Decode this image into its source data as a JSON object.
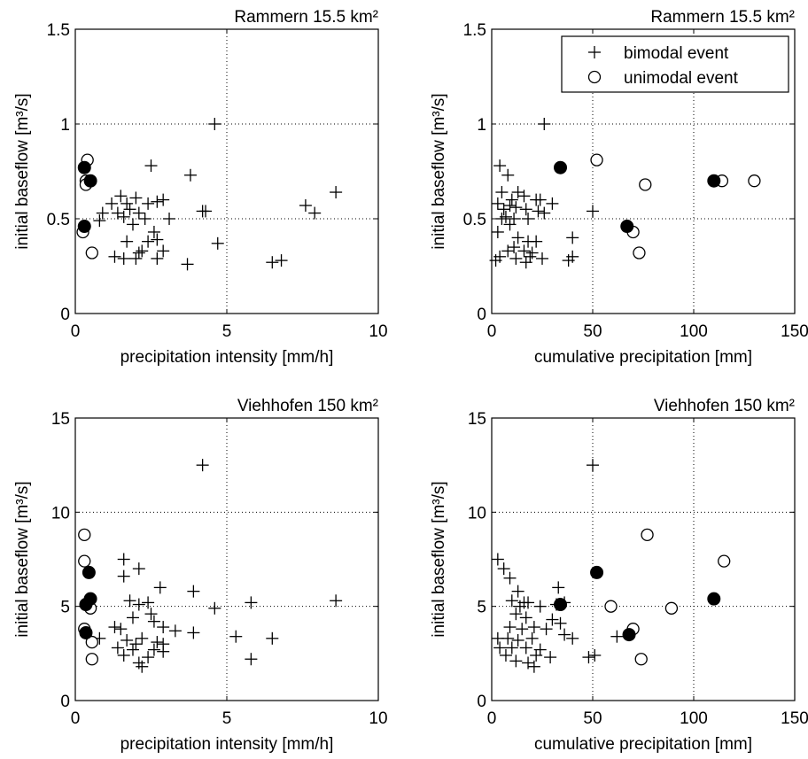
{
  "chart_data": [
    {
      "type": "scatter",
      "title": "Rammern 15.5 km²",
      "xlabel": "precipitation intensity [mm/h]",
      "ylabel": "initial baseflow [m³/s]",
      "xlim": [
        0,
        10
      ],
      "ylim": [
        0,
        1.5
      ],
      "xticks": [
        0,
        5,
        10
      ],
      "yticks": [
        0,
        0.5,
        1,
        1.5
      ],
      "xtick_labels": [
        "0",
        "5",
        "10"
      ],
      "ytick_labels": [
        "0",
        "0.5",
        "1",
        "1.5"
      ],
      "grid": "dotted at 5 and 0.5, 1",
      "legend": null,
      "series": [
        {
          "name": "bimodal event",
          "marker": "plus",
          "points": [
            [
              4.6,
              1.0
            ],
            [
              2.5,
              0.78
            ],
            [
              3.8,
              0.73
            ],
            [
              8.6,
              0.64
            ],
            [
              1.5,
              0.62
            ],
            [
              2.0,
              0.61
            ],
            [
              1.2,
              0.58
            ],
            [
              1.7,
              0.58
            ],
            [
              2.4,
              0.58
            ],
            [
              2.7,
              0.59
            ],
            [
              2.9,
              0.6
            ],
            [
              7.6,
              0.57
            ],
            [
              0.9,
              0.53
            ],
            [
              1.4,
              0.53
            ],
            [
              1.8,
              0.55
            ],
            [
              2.1,
              0.53
            ],
            [
              4.2,
              0.54
            ],
            [
              4.3,
              0.54
            ],
            [
              7.9,
              0.53
            ],
            [
              0.8,
              0.49
            ],
            [
              1.6,
              0.51
            ],
            [
              2.3,
              0.5
            ],
            [
              3.1,
              0.5
            ],
            [
              1.9,
              0.47
            ],
            [
              2.6,
              0.43
            ],
            [
              1.7,
              0.38
            ],
            [
              2.4,
              0.38
            ],
            [
              2.7,
              0.39
            ],
            [
              4.7,
              0.37
            ],
            [
              2.2,
              0.33
            ],
            [
              2.1,
              0.32
            ],
            [
              2.9,
              0.33
            ],
            [
              1.3,
              0.3
            ],
            [
              1.6,
              0.29
            ],
            [
              2.0,
              0.29
            ],
            [
              2.7,
              0.29
            ],
            [
              3.7,
              0.26
            ],
            [
              6.5,
              0.27
            ],
            [
              6.8,
              0.28
            ]
          ]
        },
        {
          "name": "unimodal event",
          "marker": "circle-open",
          "points": [
            [
              0.4,
              0.81
            ],
            [
              0.35,
              0.7
            ],
            [
              0.35,
              0.68
            ],
            [
              0.5,
              0.7
            ],
            [
              0.25,
              0.43
            ],
            [
              0.55,
              0.32
            ]
          ]
        },
        {
          "name": "",
          "marker": "circle-filled",
          "points": [
            [
              0.3,
              0.77
            ],
            [
              0.5,
              0.7
            ],
            [
              0.3,
              0.46
            ]
          ]
        }
      ]
    },
    {
      "type": "scatter",
      "title": "Rammern 15.5 km²",
      "xlabel": "cumulative precipitation [mm]",
      "ylabel": "initial baseflow [m³/s]",
      "xlim": [
        0,
        150
      ],
      "ylim": [
        0,
        1.5
      ],
      "xticks": [
        0,
        50,
        100,
        150
      ],
      "yticks": [
        0,
        0.5,
        1,
        1.5
      ],
      "xtick_labels": [
        "0",
        "50",
        "100",
        "150"
      ],
      "ytick_labels": [
        "0",
        "0.5",
        "1",
        "1.5"
      ],
      "grid": "dotted at 50, 100 and 0.5, 1",
      "legend": "top-right",
      "series": [
        {
          "name": "bimodal event",
          "marker": "plus",
          "points": [
            [
              26,
              1.0
            ],
            [
              4,
              0.78
            ],
            [
              8,
              0.73
            ],
            [
              24,
              0.6
            ],
            [
              5,
              0.64
            ],
            [
              13,
              0.64
            ],
            [
              16,
              0.62
            ],
            [
              10,
              0.6
            ],
            [
              22,
              0.6
            ],
            [
              30,
              0.58
            ],
            [
              3,
              0.58
            ],
            [
              6,
              0.55
            ],
            [
              9,
              0.57
            ],
            [
              12,
              0.56
            ],
            [
              17,
              0.55
            ],
            [
              23,
              0.54
            ],
            [
              26,
              0.53
            ],
            [
              50,
              0.54
            ],
            [
              5,
              0.5
            ],
            [
              7,
              0.51
            ],
            [
              11,
              0.5
            ],
            [
              18,
              0.5
            ],
            [
              9,
              0.47
            ],
            [
              3,
              0.43
            ],
            [
              13,
              0.4
            ],
            [
              18,
              0.38
            ],
            [
              22,
              0.38
            ],
            [
              40,
              0.4
            ],
            [
              11,
              0.35
            ],
            [
              8,
              0.33
            ],
            [
              16,
              0.33
            ],
            [
              20,
              0.32
            ],
            [
              4,
              0.3
            ],
            [
              12,
              0.29
            ],
            [
              19,
              0.3
            ],
            [
              25,
              0.29
            ],
            [
              2,
              0.28
            ],
            [
              38,
              0.28
            ],
            [
              40,
              0.3
            ],
            [
              17,
              0.27
            ]
          ]
        },
        {
          "name": "unimodal event",
          "marker": "circle-open",
          "points": [
            [
              52,
              0.81
            ],
            [
              76,
              0.68
            ],
            [
              114,
              0.7
            ],
            [
              130,
              0.7
            ],
            [
              70,
              0.43
            ],
            [
              73,
              0.32
            ]
          ]
        },
        {
          "name": "",
          "marker": "circle-filled",
          "points": [
            [
              34,
              0.77
            ],
            [
              110,
              0.7
            ],
            [
              67,
              0.46
            ]
          ]
        }
      ]
    },
    {
      "type": "scatter",
      "title": "Viehhofen 150 km²",
      "xlabel": "precipitation intensity [mm/h]",
      "ylabel": "initial baseflow [m³/s]",
      "xlim": [
        0,
        10
      ],
      "ylim": [
        0,
        15
      ],
      "xticks": [
        0,
        5,
        10
      ],
      "yticks": [
        0,
        5,
        10,
        15
      ],
      "xtick_labels": [
        "0",
        "5",
        "10"
      ],
      "ytick_labels": [
        "0",
        "5",
        "10",
        "15"
      ],
      "grid": "dotted at 5 and 5, 10",
      "legend": null,
      "series": [
        {
          "name": "bimodal event",
          "marker": "plus",
          "points": [
            [
              4.2,
              12.5
            ],
            [
              1.6,
              7.5
            ],
            [
              2.1,
              7.0
            ],
            [
              1.6,
              6.6
            ],
            [
              2.8,
              6.0
            ],
            [
              3.9,
              5.8
            ],
            [
              1.8,
              5.3
            ],
            [
              2.1,
              5.1
            ],
            [
              2.4,
              5.2
            ],
            [
              5.8,
              5.2
            ],
            [
              8.6,
              5.3
            ],
            [
              4.6,
              4.9
            ],
            [
              2.5,
              4.6
            ],
            [
              1.9,
              4.4
            ],
            [
              2.6,
              4.2
            ],
            [
              1.3,
              3.9
            ],
            [
              1.5,
              3.8
            ],
            [
              2.9,
              3.9
            ],
            [
              3.3,
              3.7
            ],
            [
              3.9,
              3.6
            ],
            [
              5.3,
              3.4
            ],
            [
              6.5,
              3.3
            ],
            [
              0.8,
              3.3
            ],
            [
              1.7,
              3.2
            ],
            [
              2.2,
              3.3
            ],
            [
              2.7,
              3.1
            ],
            [
              2.0,
              3.0
            ],
            [
              2.9,
              3.0
            ],
            [
              1.4,
              2.8
            ],
            [
              1.9,
              2.7
            ],
            [
              2.6,
              2.7
            ],
            [
              2.9,
              2.6
            ],
            [
              1.6,
              2.4
            ],
            [
              2.4,
              2.3
            ],
            [
              5.8,
              2.2
            ],
            [
              2.1,
              2.0
            ],
            [
              2.2,
              1.8
            ]
          ]
        },
        {
          "name": "unimodal event",
          "marker": "circle-open",
          "points": [
            [
              0.3,
              8.8
            ],
            [
              0.3,
              7.4
            ],
            [
              0.5,
              4.9
            ],
            [
              0.3,
              3.8
            ],
            [
              0.55,
              3.1
            ],
            [
              0.55,
              2.2
            ]
          ]
        },
        {
          "name": "",
          "marker": "circle-filled",
          "points": [
            [
              0.45,
              6.8
            ],
            [
              0.5,
              5.4
            ],
            [
              0.35,
              5.1
            ],
            [
              0.35,
              3.6
            ]
          ]
        }
      ]
    },
    {
      "type": "scatter",
      "title": "Viehhofen 150 km²",
      "xlabel": "cumulative precipitation [mm]",
      "ylabel": "initial baseflow [m³/s]",
      "xlim": [
        0,
        150
      ],
      "ylim": [
        0,
        15
      ],
      "xticks": [
        0,
        50,
        100,
        150
      ],
      "yticks": [
        0,
        5,
        10,
        15
      ],
      "xtick_labels": [
        "0",
        "50",
        "100",
        "150"
      ],
      "ytick_labels": [
        "0",
        "5",
        "10",
        "15"
      ],
      "grid": "dotted at 50, 100 and 5, 10",
      "legend": null,
      "series": [
        {
          "name": "bimodal event",
          "marker": "plus",
          "points": [
            [
              50,
              12.5
            ],
            [
              3,
              7.5
            ],
            [
              6,
              7.0
            ],
            [
              9,
              6.5
            ],
            [
              13,
              5.8
            ],
            [
              33,
              6.0
            ],
            [
              10,
              5.3
            ],
            [
              14,
              5.0
            ],
            [
              16,
              5.2
            ],
            [
              18,
              5.2
            ],
            [
              24,
              5.0
            ],
            [
              32,
              5.1
            ],
            [
              36,
              5.2
            ],
            [
              12,
              4.6
            ],
            [
              17,
              4.4
            ],
            [
              9,
              3.9
            ],
            [
              15,
              3.8
            ],
            [
              21,
              3.9
            ],
            [
              27,
              3.8
            ],
            [
              30,
              4.3
            ],
            [
              34,
              4.1
            ],
            [
              3,
              3.3
            ],
            [
              8,
              3.3
            ],
            [
              13,
              3.2
            ],
            [
              20,
              3.3
            ],
            [
              40,
              3.3
            ],
            [
              36,
              3.5
            ],
            [
              62,
              3.4
            ],
            [
              4,
              2.8
            ],
            [
              10,
              2.8
            ],
            [
              17,
              2.8
            ],
            [
              24,
              2.7
            ],
            [
              7,
              2.4
            ],
            [
              22,
              2.4
            ],
            [
              29,
              2.3
            ],
            [
              48,
              2.3
            ],
            [
              12,
              2.1
            ],
            [
              18,
              2.0
            ],
            [
              21,
              1.8
            ],
            [
              51,
              2.4
            ]
          ]
        },
        {
          "name": "unimodal event",
          "marker": "circle-open",
          "points": [
            [
              77,
              8.8
            ],
            [
              115,
              7.4
            ],
            [
              59,
              5.0
            ],
            [
              89,
              4.9
            ],
            [
              70,
              3.8
            ],
            [
              74,
              2.2
            ]
          ]
        },
        {
          "name": "",
          "marker": "circle-filled",
          "points": [
            [
              52,
              6.8
            ],
            [
              110,
              5.4
            ],
            [
              34,
              5.1
            ],
            [
              68,
              3.5
            ]
          ]
        }
      ]
    }
  ],
  "legend": {
    "entries": [
      {
        "label": "bimodal event",
        "marker": "plus"
      },
      {
        "label": "unimodal event",
        "marker": "circle-open"
      }
    ]
  }
}
